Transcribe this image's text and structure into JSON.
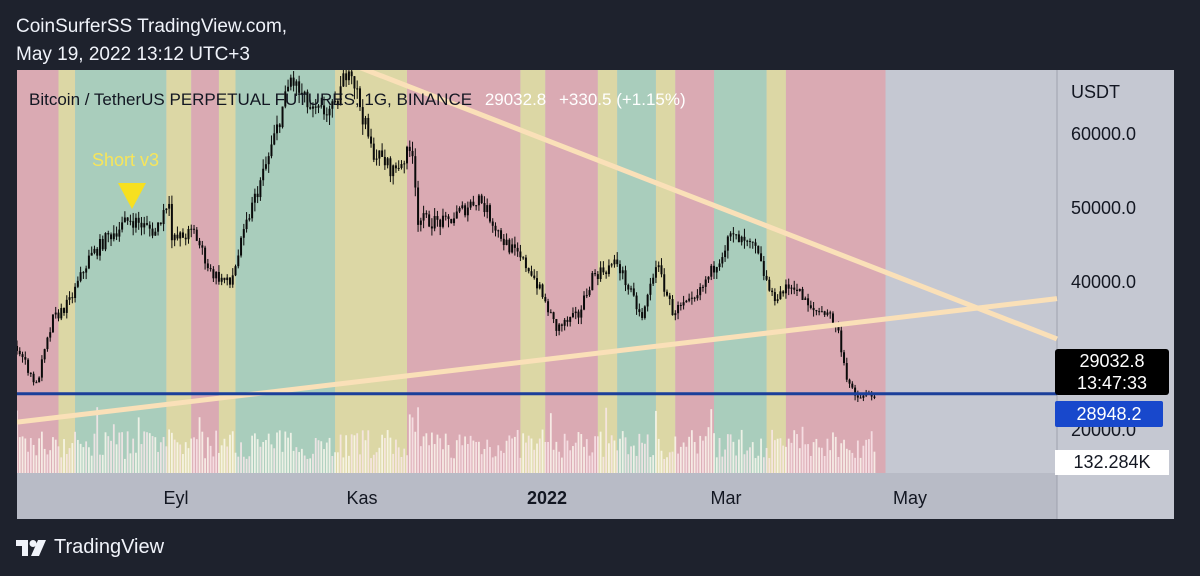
{
  "header": {
    "line1": "CoinSurferSS TradingView.com,",
    "line2": "May 19, 2022 13:12 UTC+3"
  },
  "footer": {
    "brand": "TradingView",
    "logo_icon": "tradingview-logo-icon"
  },
  "colors": {
    "red_band": "#daaab3",
    "green_band": "#a9cdbc",
    "yellow_band": "#dcd7a5",
    "trendline": "#fae0b8",
    "price_line": "#1b3f9a",
    "annotation": "#f7e55a",
    "candle": "#0a0a0a"
  },
  "chart_data": {
    "type": "candlestick",
    "symbol": "Bitcoin / TetherUS PERPETUAL FUTURES, 1G, BINANCE",
    "last_price": "29032.8",
    "change": "+330.5 (+1.15%)",
    "unit": "USDT",
    "y_ticks": [
      "60000.0",
      "50000.0",
      "40000.0",
      "20000.0"
    ],
    "x_ticks": [
      {
        "label": "Eyl",
        "bold": false,
        "date": "2021-09-01"
      },
      {
        "label": "Kas",
        "bold": false,
        "date": "2021-11-01"
      },
      {
        "label": "2022",
        "bold": true,
        "date": "2022-01-01"
      },
      {
        "label": "Mar",
        "bold": false,
        "date": "2022-03-01"
      },
      {
        "label": "May",
        "bold": false,
        "date": "2022-05-01"
      }
    ],
    "ylim": [
      20000,
      66000
    ],
    "xlim": [
      "2021-07-13",
      "2022-07-24"
    ],
    "last_bar": "2022-05-19",
    "price_tags": {
      "last": "29032.8",
      "countdown": "13:47:33",
      "line": "28948.2",
      "volume": "132.284K"
    },
    "horizontal_line": 29050,
    "annotation": {
      "text": "Short v3",
      "date": "2021-08-18",
      "marker": "down-triangle"
    },
    "trendlines": [
      {
        "name": "descending",
        "from": {
          "date": "2021-10-31",
          "price": 68000
        },
        "to": {
          "date": "2022-07-24",
          "price": 35300
        }
      },
      {
        "name": "ascending",
        "from": {
          "date": "2021-07-13",
          "price": 25800
        },
        "to": {
          "date": "2022-07-24",
          "price": 39900
        }
      }
    ],
    "price_path": [
      [
        "2021-07-13",
        34500
      ],
      [
        "2021-07-20",
        30000
      ],
      [
        "2021-07-26",
        37500
      ],
      [
        "2021-08-01",
        39500
      ],
      [
        "2021-08-08",
        44500
      ],
      [
        "2021-08-15",
        47000
      ],
      [
        "2021-08-23",
        49000
      ],
      [
        "2021-09-01",
        47500
      ],
      [
        "2021-09-06",
        51500
      ],
      [
        "2021-09-07",
        46500
      ],
      [
        "2021-09-15",
        47500
      ],
      [
        "2021-09-21",
        43000
      ],
      [
        "2021-09-28",
        41500
      ],
      [
        "2021-10-05",
        49500
      ],
      [
        "2021-10-12",
        56000
      ],
      [
        "2021-10-20",
        65000
      ],
      [
        "2021-10-28",
        61000
      ],
      [
        "2021-11-05",
        61500
      ],
      [
        "2021-11-10",
        67000
      ],
      [
        "2021-11-18",
        57000
      ],
      [
        "2021-11-26",
        54500
      ],
      [
        "2021-12-03",
        57000
      ],
      [
        "2021-12-05",
        49000
      ],
      [
        "2021-12-15",
        48500
      ],
      [
        "2021-12-27",
        51500
      ],
      [
        "2022-01-05",
        46500
      ],
      [
        "2022-01-15",
        43000
      ],
      [
        "2022-01-24",
        36500
      ],
      [
        "2022-02-01",
        38000
      ],
      [
        "2022-02-06",
        42500
      ],
      [
        "2022-02-15",
        44000
      ],
      [
        "2022-02-24",
        37500
      ],
      [
        "2022-03-01",
        44000
      ],
      [
        "2022-03-07",
        38500
      ],
      [
        "2022-03-15",
        39500
      ],
      [
        "2022-03-28",
        47000
      ],
      [
        "2022-04-06",
        45500
      ],
      [
        "2022-04-12",
        40000
      ],
      [
        "2022-04-20",
        41500
      ],
      [
        "2022-04-26",
        38500
      ],
      [
        "2022-05-02",
        38500
      ],
      [
        "2022-05-06",
        36000
      ],
      [
        "2022-05-09",
        31000
      ],
      [
        "2022-05-12",
        28500
      ],
      [
        "2022-05-19",
        29000
      ]
    ],
    "bands": [
      [
        "2021-07-13",
        "2021-07-28",
        "red"
      ],
      [
        "2021-07-28",
        "2021-08-03",
        "yellow"
      ],
      [
        "2021-08-03",
        "2021-09-05",
        "green"
      ],
      [
        "2021-09-05",
        "2021-09-14",
        "yellow"
      ],
      [
        "2021-09-14",
        "2021-09-24",
        "red"
      ],
      [
        "2021-09-24",
        "2021-09-30",
        "yellow"
      ],
      [
        "2021-09-30",
        "2021-11-05",
        "green"
      ],
      [
        "2021-11-05",
        "2021-12-01",
        "yellow"
      ],
      [
        "2021-12-01",
        "2022-01-11",
        "red"
      ],
      [
        "2022-01-11",
        "2022-01-20",
        "yellow"
      ],
      [
        "2022-01-20",
        "2022-02-08",
        "red"
      ],
      [
        "2022-02-08",
        "2022-02-15",
        "yellow"
      ],
      [
        "2022-02-15",
        "2022-03-01",
        "green"
      ],
      [
        "2022-03-01",
        "2022-03-08",
        "yellow"
      ],
      [
        "2022-03-08",
        "2022-03-22",
        "red"
      ],
      [
        "2022-03-22",
        "2022-04-10",
        "green"
      ],
      [
        "2022-04-10",
        "2022-04-17",
        "yellow"
      ],
      [
        "2022-04-17",
        "2022-05-23",
        "red"
      ]
    ],
    "legend": "none",
    "grid": false
  }
}
